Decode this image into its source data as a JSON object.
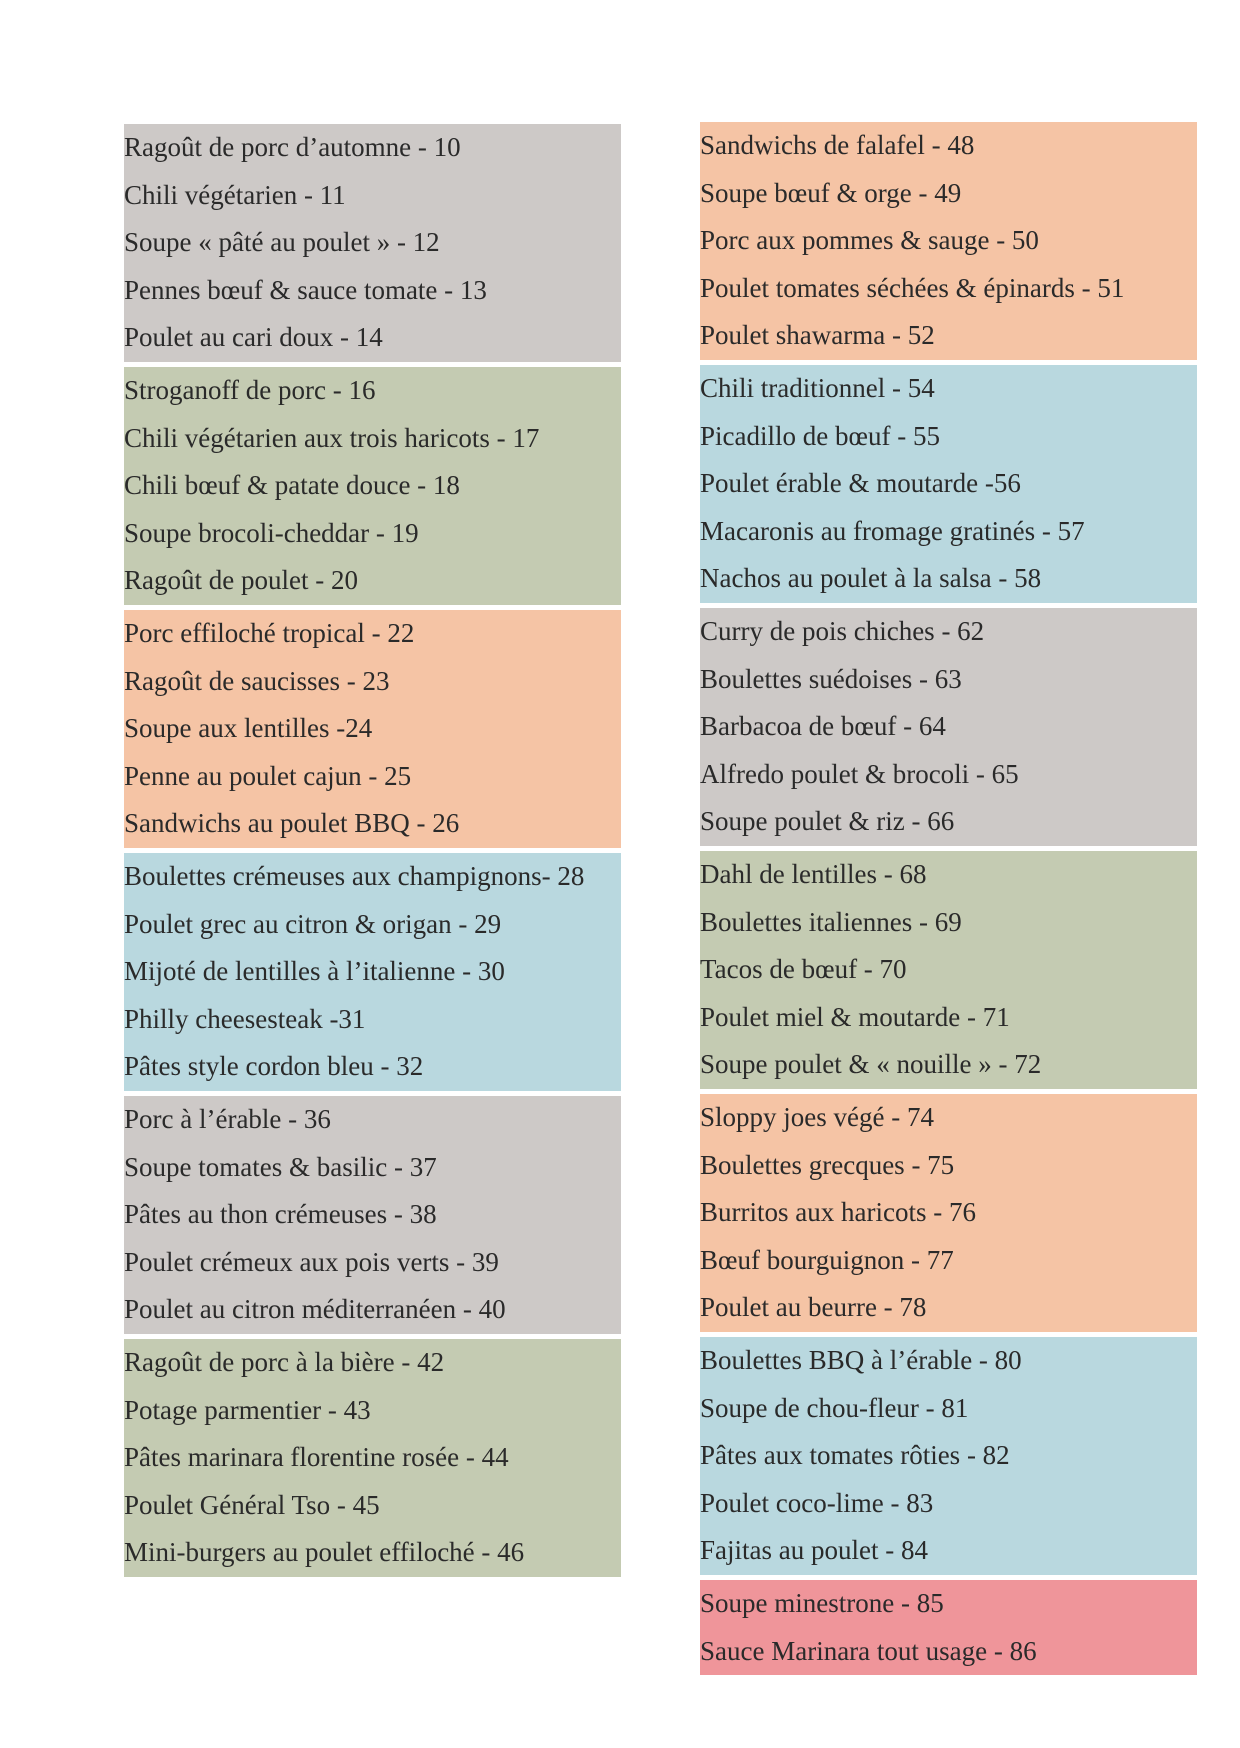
{
  "columns": [
    {
      "groups": [
        {
          "color": "#cdc9c7",
          "items": [
            "Ragoût de porc d’automne - 10",
            "Chili végétarien - 11",
            "Soupe « pâté au poulet » - 12",
            "Pennes bœuf & sauce tomate - 13",
            "Poulet au cari doux - 14"
          ]
        },
        {
          "color": "#c4cbb2",
          "items": [
            "Stroganoff de porc - 16",
            "Chili végétarien aux trois haricots - 17",
            "Chili bœuf & patate douce - 18",
            "Soupe brocoli-cheddar - 19",
            "Ragoût de poulet - 20"
          ]
        },
        {
          "color": "#f5c4a5",
          "items": [
            "Porc effiloché tropical - 22",
            "Ragoût de saucisses - 23",
            "Soupe aux lentilles -24",
            "Penne au poulet cajun - 25",
            "Sandwichs au poulet BBQ - 26"
          ]
        },
        {
          "color": "#b9d8df",
          "items": [
            "Boulettes crémeuses aux champignons- 28",
            "Poulet grec au citron & origan - 29",
            "Mijoté de lentilles à l’italienne - 30",
            "Philly cheesesteak -31",
            "Pâtes style cordon bleu - 32"
          ]
        },
        {
          "color": "#cdc9c7",
          "items": [
            "Porc à l’érable - 36",
            "Soupe tomates & basilic - 37",
            "Pâtes au thon crémeuses - 38",
            "Poulet crémeux aux pois verts - 39",
            "Poulet au citron méditerranéen - 40"
          ]
        },
        {
          "color": "#c4cbb2",
          "items": [
            "Ragoût de porc à la bière - 42",
            "Potage parmentier - 43",
            "Pâtes marinara florentine rosée - 44",
            "Poulet Général Tso - 45",
            "Mini-burgers au poulet effiloché - 46"
          ]
        }
      ]
    },
    {
      "groups": [
        {
          "color": "#f5c4a5",
          "items": [
            "Sandwichs de falafel - 48",
            "Soupe bœuf & orge - 49",
            "Porc aux pommes & sauge - 50",
            "Poulet tomates séchées & épinards - 51",
            "Poulet shawarma - 52"
          ]
        },
        {
          "color": "#b9d8df",
          "items": [
            "Chili traditionnel - 54",
            "Picadillo de bœuf - 55",
            "Poulet érable & moutarde -56",
            "Macaronis au fromage gratinés - 57",
            "Nachos au poulet à la salsa - 58"
          ]
        },
        {
          "color": "#cdc9c7",
          "items": [
            "Curry de pois chiches - 62",
            "Boulettes suédoises - 63",
            "Barbacoa de bœuf - 64",
            "Alfredo poulet & brocoli - 65",
            "Soupe poulet & riz - 66"
          ]
        },
        {
          "color": "#c4cbb2",
          "items": [
            "Dahl de lentilles - 68",
            "Boulettes italiennes - 69",
            "Tacos de bœuf - 70",
            "Poulet miel & moutarde - 71",
            "Soupe poulet & « nouille » - 72"
          ]
        },
        {
          "color": "#f5c4a5",
          "items": [
            "Sloppy joes végé - 74",
            "Boulettes grecques - 75",
            "Burritos aux haricots - 76",
            "Bœuf bourguignon - 77",
            "Poulet au beurre - 78"
          ]
        },
        {
          "color": "#b9d8df",
          "items": [
            "Boulettes BBQ à l’érable - 80",
            "Soupe de chou-fleur - 81",
            "Pâtes aux tomates rôties - 82",
            "Poulet coco-lime - 83",
            "Fajitas au poulet - 84"
          ]
        },
        {
          "color": "#ef959a",
          "items": [
            "Soupe minestrone - 85",
            "Sauce Marinara tout usage - 86"
          ]
        }
      ]
    }
  ]
}
